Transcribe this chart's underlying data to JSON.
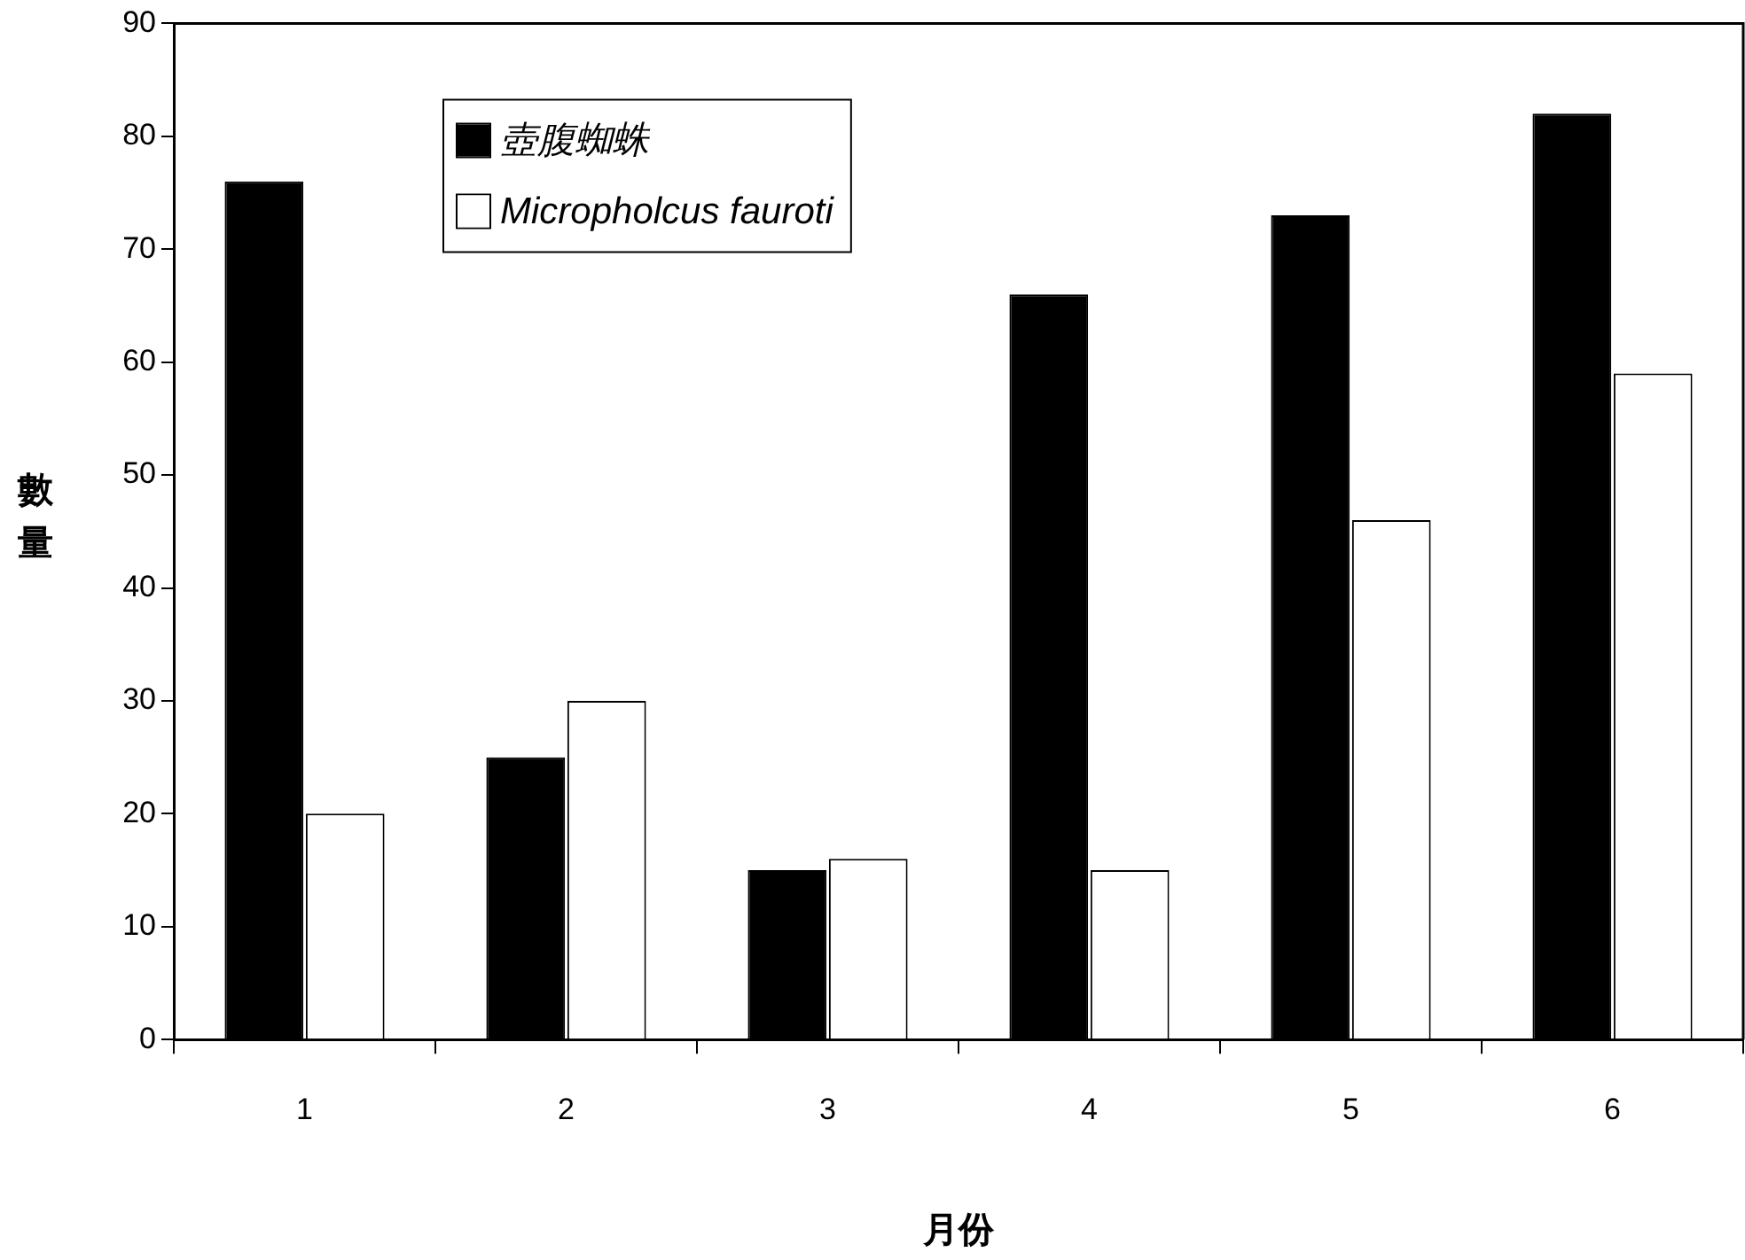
{
  "chart_data": {
    "type": "bar",
    "xlabel": "月份",
    "ylabel": "數量",
    "categories": [
      "1",
      "2",
      "3",
      "4",
      "5",
      "6"
    ],
    "series": [
      {
        "name": "壺腹蜘蛛",
        "color": "#000000",
        "values": [
          76,
          25,
          15,
          66,
          73,
          82
        ]
      },
      {
        "name": "Micropholcus fauroti",
        "color": "#ffffff",
        "values": [
          20,
          30,
          16,
          15,
          46,
          59
        ]
      }
    ],
    "ylim": [
      0,
      90
    ],
    "yticks": [
      0,
      10,
      20,
      30,
      40,
      50,
      60,
      70,
      80,
      90
    ],
    "grid": false,
    "legend": "top left"
  }
}
